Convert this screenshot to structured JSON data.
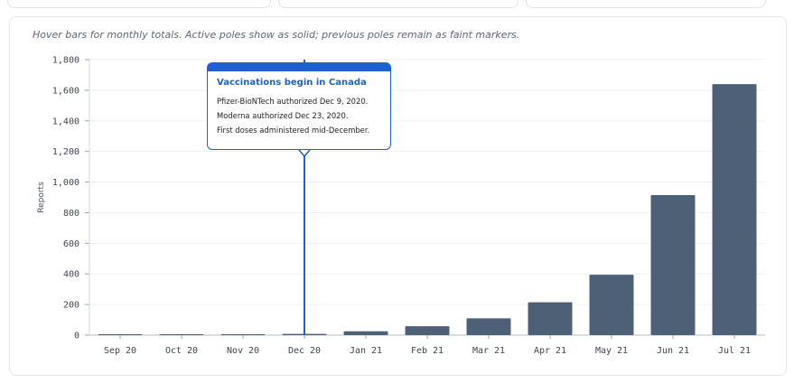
{
  "hint": "Hover bars for monthly totals. Active poles show as solid; previous poles remain as faint markers.",
  "colors": {
    "bar": "#4d6075",
    "accent": "#1f5fd6",
    "grid": "#eef1f5"
  },
  "annotation": {
    "title": "Vaccinations begin in Canada",
    "lines": [
      "Pfizer-BioNTech authorized Dec 9, 2020.",
      "Moderna authorized Dec 23, 2020.",
      "First doses administered mid-December."
    ],
    "category": "Dec 20"
  },
  "chart_data": {
    "type": "bar",
    "categories": [
      "Sep 20",
      "Oct 20",
      "Nov 20",
      "Dec 20",
      "Jan 21",
      "Feb 21",
      "Mar 21",
      "Apr 21",
      "May 21",
      "Jun 21",
      "Jul 21"
    ],
    "values": [
      2,
      5,
      6,
      8,
      25,
      58,
      110,
      215,
      395,
      915,
      1640
    ],
    "ylabel": "Reports",
    "xlabel": "",
    "ylim": [
      0,
      1800
    ],
    "yticks": [
      "0",
      "200",
      "400",
      "600",
      "800",
      "1,000",
      "1,200",
      "1,400",
      "1,600",
      "1,800"
    ],
    "grid": true
  }
}
